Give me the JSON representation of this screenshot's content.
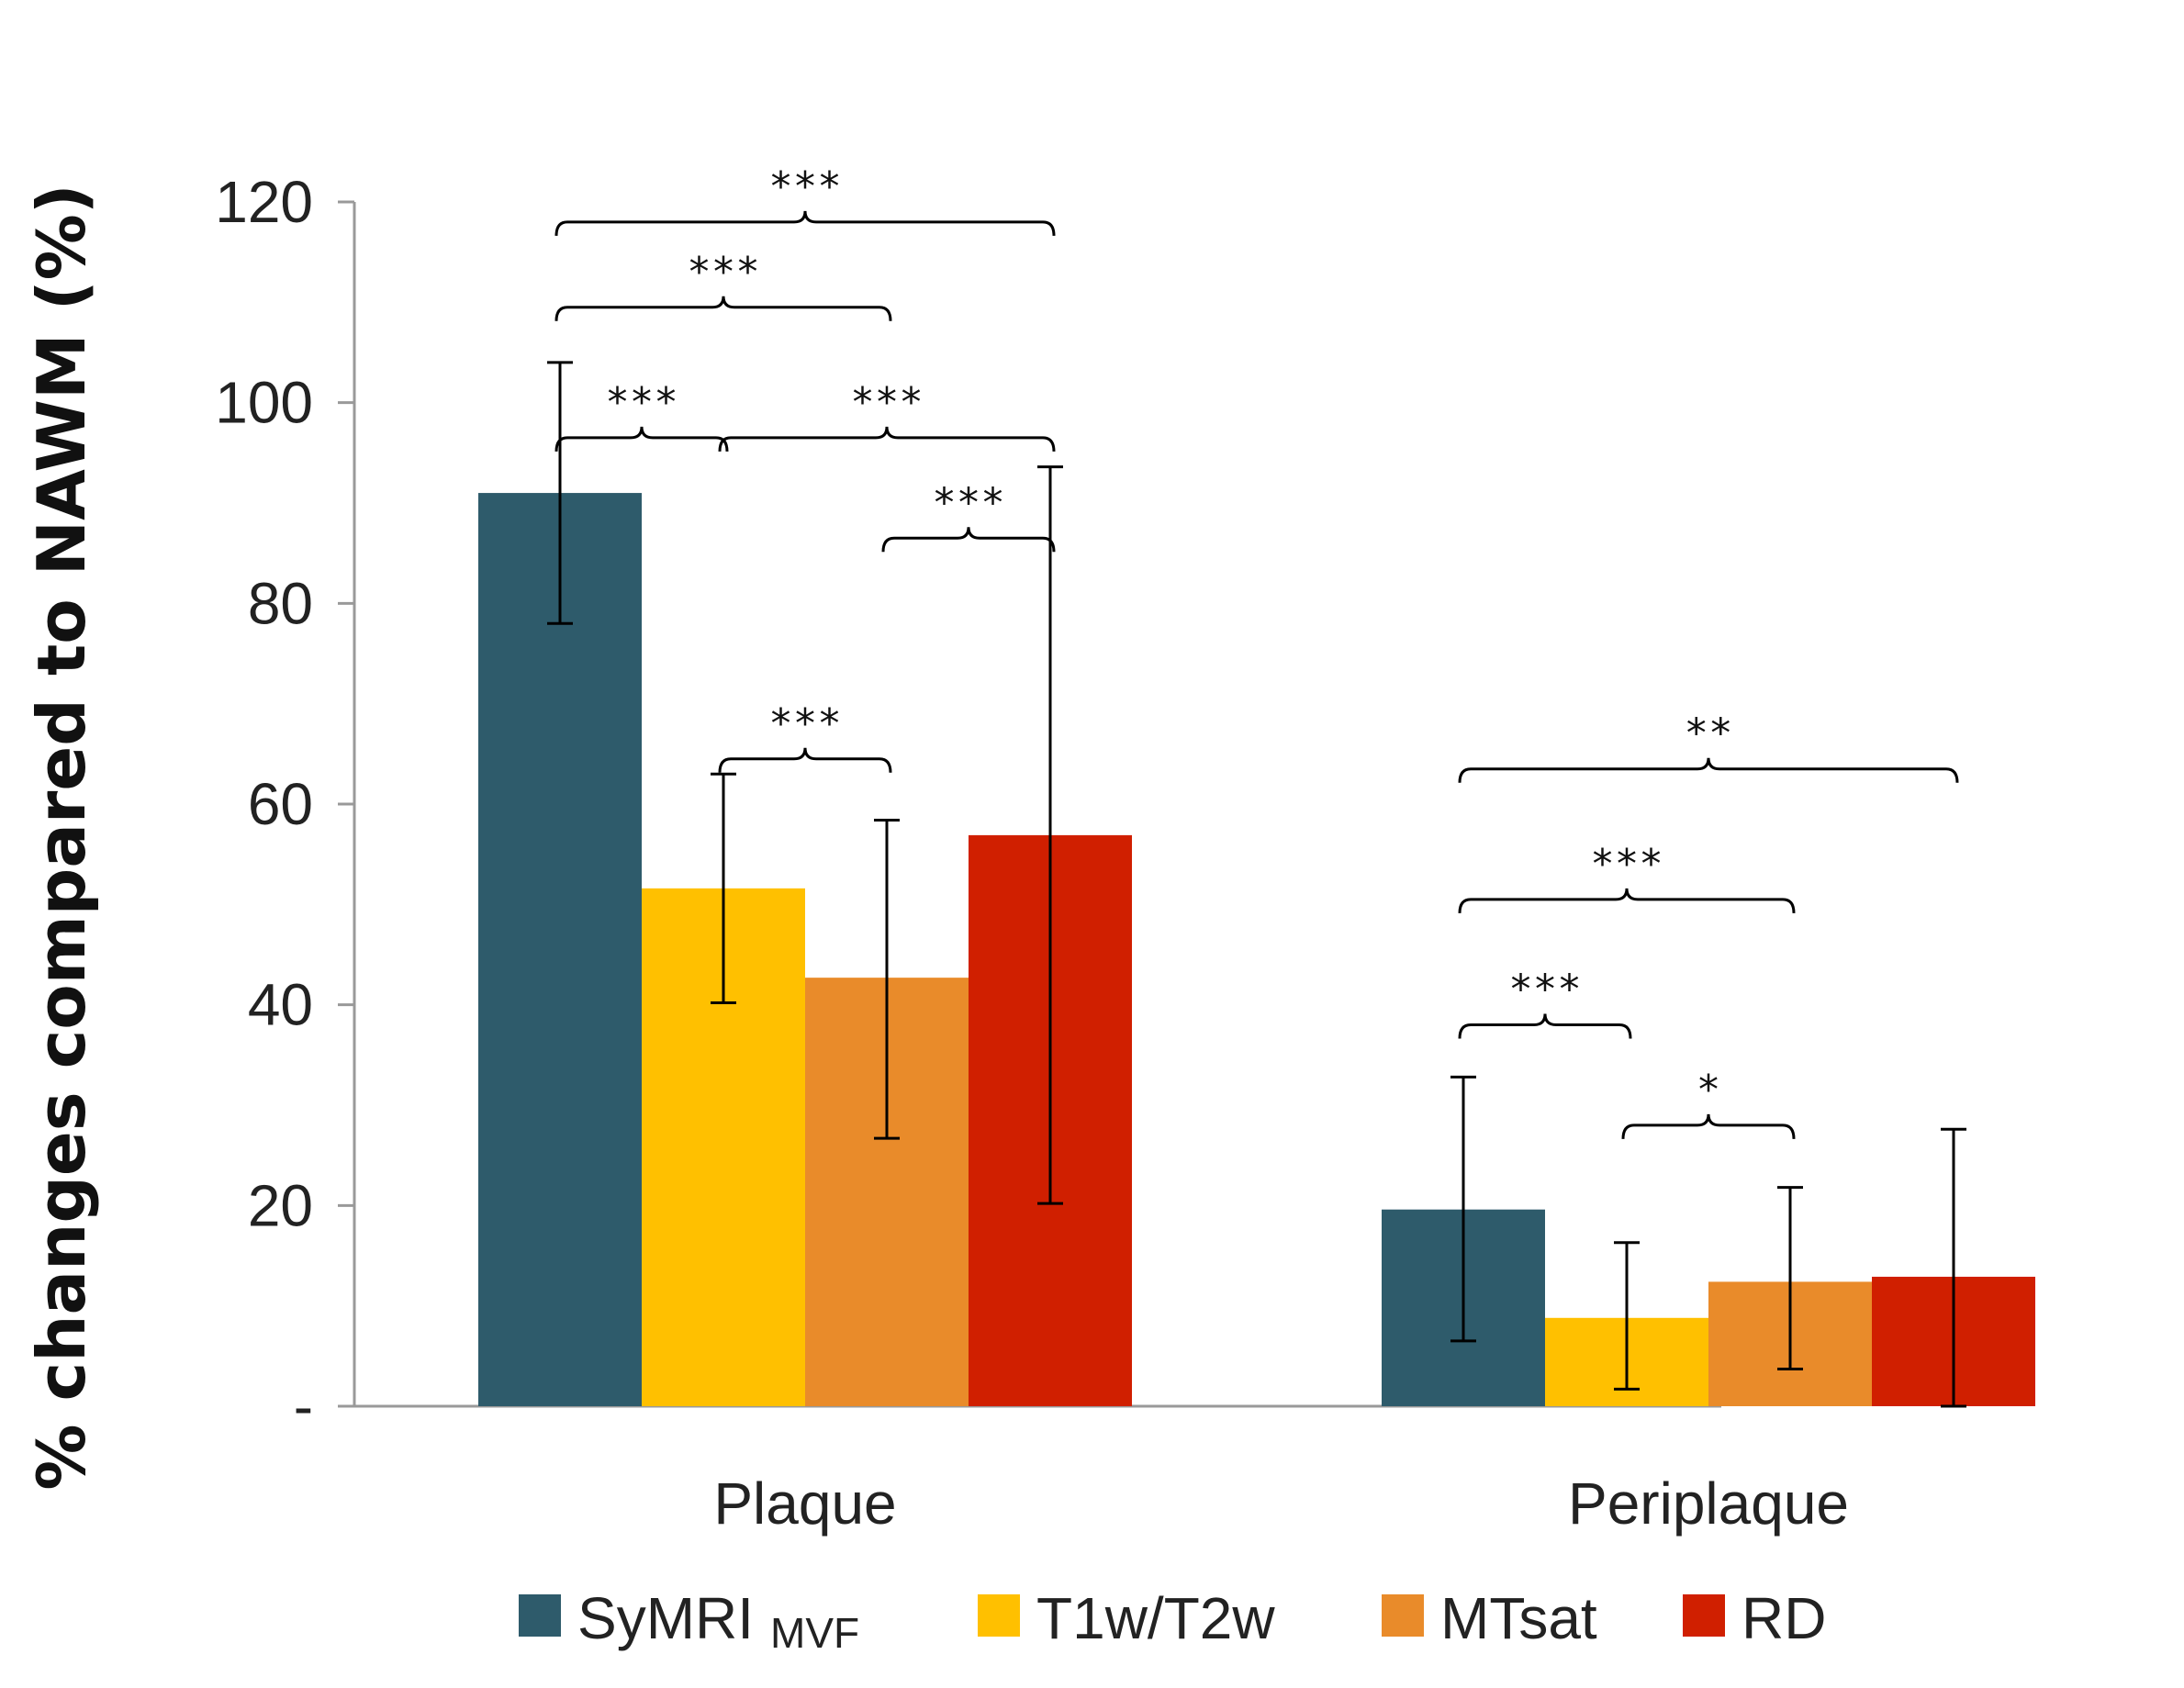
{
  "chart_data": {
    "type": "bar",
    "title": "",
    "xlabel": "",
    "ylabel": "% changes compared to NAWM (%)",
    "ylim": [
      0,
      120
    ],
    "yticks": [
      0,
      20,
      40,
      60,
      80,
      100,
      120
    ],
    "ytick_labels": [
      "-",
      "20",
      "40",
      "60",
      "80",
      "100",
      "120"
    ],
    "categories": [
      "Plaque",
      "Periplaque"
    ],
    "series": [
      {
        "name": "SyMRI",
        "name_sub": "MVF",
        "color": "#2e5b6b",
        "values": [
          91,
          19.6
        ],
        "err_low": [
          78,
          6.5
        ],
        "err_high": [
          104,
          32.8
        ]
      },
      {
        "name": "T1w/T2w",
        "name_sub": "",
        "color": "#ffc000",
        "values": [
          51.6,
          8.8
        ],
        "err_low": [
          40.2,
          1.7
        ],
        "err_high": [
          63,
          16.3
        ]
      },
      {
        "name": "MTsat",
        "name_sub": "",
        "color": "#e98b2a",
        "values": [
          42.7,
          12.4
        ],
        "err_low": [
          26.7,
          3.7
        ],
        "err_high": [
          58.4,
          21.8
        ]
      },
      {
        "name": "RD",
        "name_sub": "",
        "color": "#d01f00",
        "values": [
          56.9,
          12.9
        ],
        "err_low": [
          20.2,
          0
        ],
        "err_high": [
          93.6,
          27.6
        ]
      }
    ],
    "significance": [
      {
        "category": "Plaque",
        "from": 0,
        "to": 3,
        "level": 118,
        "label": "***"
      },
      {
        "category": "Plaque",
        "from": 0,
        "to": 2,
        "level": 109.5,
        "label": "***"
      },
      {
        "category": "Plaque",
        "from": 0,
        "to": 1,
        "level": 96.5,
        "label": "***"
      },
      {
        "category": "Plaque",
        "from": 1,
        "to": 3,
        "level": 96.5,
        "label": "***"
      },
      {
        "category": "Plaque",
        "from": 2,
        "to": 3,
        "level": 86.5,
        "label": "***"
      },
      {
        "category": "Plaque",
        "from": 1,
        "to": 2,
        "level": 64.5,
        "label": "***"
      },
      {
        "category": "Periplaque",
        "from": 0,
        "to": 3,
        "level": 63.5,
        "label": "**"
      },
      {
        "category": "Periplaque",
        "from": 0,
        "to": 2,
        "level": 50.5,
        "label": "***"
      },
      {
        "category": "Periplaque",
        "from": 0,
        "to": 1,
        "level": 38,
        "label": "***"
      },
      {
        "category": "Periplaque",
        "from": 1,
        "to": 2,
        "level": 28,
        "label": "*"
      }
    ],
    "legend_position": "bottom",
    "grid": false
  }
}
